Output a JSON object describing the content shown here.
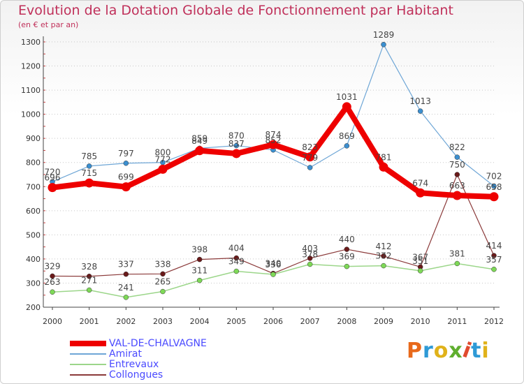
{
  "header": {
    "title": "Evolution de la Dotation Globale de Fonctionnement par Habitant",
    "subtitle": "(en € et par an)"
  },
  "logo": {
    "text": "Proxiti",
    "colors": [
      "#e8691b",
      "#2e9ad6",
      "#e0b21a",
      "#5fae2e",
      "#e04a2e",
      "#2e9ad6",
      "#e0b21a"
    ]
  },
  "chart_data": {
    "type": "line",
    "x": [
      "2000",
      "2001",
      "2002",
      "2003",
      "2004",
      "2005",
      "2006",
      "2007",
      "2008",
      "2009",
      "2010",
      "2011",
      "2012"
    ],
    "ylim": [
      200,
      1300
    ],
    "yticks": [
      200,
      300,
      400,
      500,
      600,
      700,
      800,
      900,
      1000,
      1100,
      1200,
      1300
    ],
    "grid": "dotted-horizontal",
    "legend_position": "bottom-left",
    "series": [
      {
        "name": "Collongues",
        "color": "#8b3a3a",
        "marker": "#6a1a1a",
        "width": 1.2,
        "values": [
          329,
          328,
          337,
          338,
          398,
          404,
          340,
          403,
          440,
          412,
          367,
          750,
          414
        ]
      },
      {
        "name": "Entrevaux",
        "color": "#9cd68a",
        "marker": "#7ed957",
        "width": 1.5,
        "values": [
          263,
          271,
          241,
          265,
          311,
          349,
          336,
          378,
          369,
          372,
          351,
          381,
          357
        ]
      },
      {
        "name": "Amirat",
        "color": "#6ea6d6",
        "marker": "#3b8fd0",
        "width": 1.2,
        "values": [
          720,
          785,
          797,
          800,
          859,
          870,
          852,
          779,
          869,
          1289,
          1013,
          822,
          702
        ]
      },
      {
        "name": "VAL-DE-CHALVAGNE",
        "color": "#ee0000",
        "marker": "#ee0000",
        "width": 8,
        "values": [
          696,
          715,
          699,
          772,
          849,
          837,
          874,
          823,
          1031,
          781,
          674,
          663,
          658
        ]
      }
    ],
    "legend": [
      "VAL-DE-CHALVAGNE",
      "Amirat",
      "Entrevaux",
      "Collongues"
    ]
  }
}
